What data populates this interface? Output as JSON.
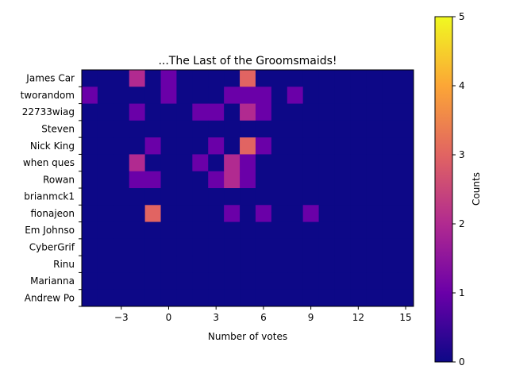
{
  "chart_data": {
    "type": "heatmap",
    "title": "...The Last of the Groomsmaids!",
    "xlabel": "Number of votes",
    "colorbar_label": "Counts",
    "colormap": "plasma",
    "x_range": [
      -5.5,
      15.5
    ],
    "x_bin_width": 1,
    "x_ticks": [
      -3,
      0,
      3,
      6,
      9,
      12,
      15
    ],
    "color_range": [
      0,
      5
    ],
    "colorbar_ticks": [
      0,
      1,
      2,
      3,
      4,
      5
    ],
    "rows": [
      "James Car",
      "tworandom",
      "22733wiag",
      "Steven",
      "Nick King",
      "when ques",
      "Rowan",
      "brianmck1",
      "fionajeon",
      "Em Johnso",
      "CyberGrif",
      "Rinu",
      "Marianna ",
      "Andrew Po"
    ],
    "bin_starts": [
      -5.5,
      -4.5,
      -3.5,
      -2.5,
      -1.5,
      -0.5,
      0.5,
      1.5,
      2.5,
      3.5,
      4.5,
      5.5,
      6.5,
      7.5,
      8.5,
      9.5,
      10.5,
      11.5,
      12.5,
      13.5,
      14.5
    ],
    "counts": [
      [
        0,
        0,
        0,
        2,
        0,
        1,
        0,
        0,
        0,
        0,
        3,
        0,
        0,
        0,
        0,
        0,
        0,
        0,
        0,
        0,
        0
      ],
      [
        1,
        0,
        0,
        0,
        0,
        1,
        0,
        0,
        0,
        1,
        1,
        1,
        0,
        1,
        0,
        0,
        0,
        0,
        0,
        0,
        0
      ],
      [
        0,
        0,
        0,
        1,
        0,
        0,
        0,
        1,
        1,
        0,
        2,
        1,
        0,
        0,
        0,
        0,
        0,
        0,
        0,
        0,
        0
      ],
      [
        0,
        0,
        0,
        0,
        0,
        0,
        0,
        0,
        0,
        0,
        0,
        0,
        0,
        0,
        0,
        0,
        0,
        0,
        0,
        0,
        0
      ],
      [
        0,
        0,
        0,
        0,
        1,
        0,
        0,
        0,
        1,
        0,
        3,
        1,
        0,
        0,
        0,
        0,
        0,
        0,
        0,
        0,
        0
      ],
      [
        0,
        0,
        0,
        2,
        0,
        0,
        0,
        1,
        0,
        2,
        1,
        0,
        0,
        0,
        0,
        0,
        0,
        0,
        0,
        0,
        0
      ],
      [
        0,
        0,
        0,
        1,
        1,
        0,
        0,
        0,
        1,
        2,
        1,
        0,
        0,
        0,
        0,
        0,
        0,
        0,
        0,
        0,
        0
      ],
      [
        0,
        0,
        0,
        0,
        0,
        0,
        0,
        0,
        0,
        0,
        0,
        0,
        0,
        0,
        0,
        0,
        0,
        0,
        0,
        0,
        0
      ],
      [
        0,
        0,
        0,
        0,
        3,
        0,
        0,
        0,
        0,
        1,
        0,
        1,
        0,
        0,
        1,
        0,
        0,
        0,
        0,
        0,
        0
      ],
      [
        0,
        0,
        0,
        0,
        0,
        0,
        0,
        0,
        0,
        0,
        0,
        0,
        0,
        0,
        0,
        0,
        0,
        0,
        0,
        0,
        0
      ],
      [
        0,
        0,
        0,
        0,
        0,
        0,
        0,
        0,
        0,
        0,
        0,
        0,
        0,
        0,
        0,
        0,
        0,
        0,
        0,
        0,
        0
      ],
      [
        0,
        0,
        0,
        0,
        0,
        0,
        0,
        0,
        0,
        0,
        0,
        0,
        0,
        0,
        0,
        0,
        0,
        0,
        0,
        0,
        0
      ],
      [
        0,
        0,
        0,
        0,
        0,
        0,
        0,
        0,
        0,
        0,
        0,
        0,
        0,
        0,
        0,
        0,
        0,
        0,
        0,
        0,
        0
      ],
      [
        0,
        0,
        0,
        0,
        0,
        0,
        0,
        0,
        0,
        0,
        0,
        0,
        0,
        0,
        0,
        0,
        0,
        0,
        0,
        0,
        0
      ]
    ]
  }
}
